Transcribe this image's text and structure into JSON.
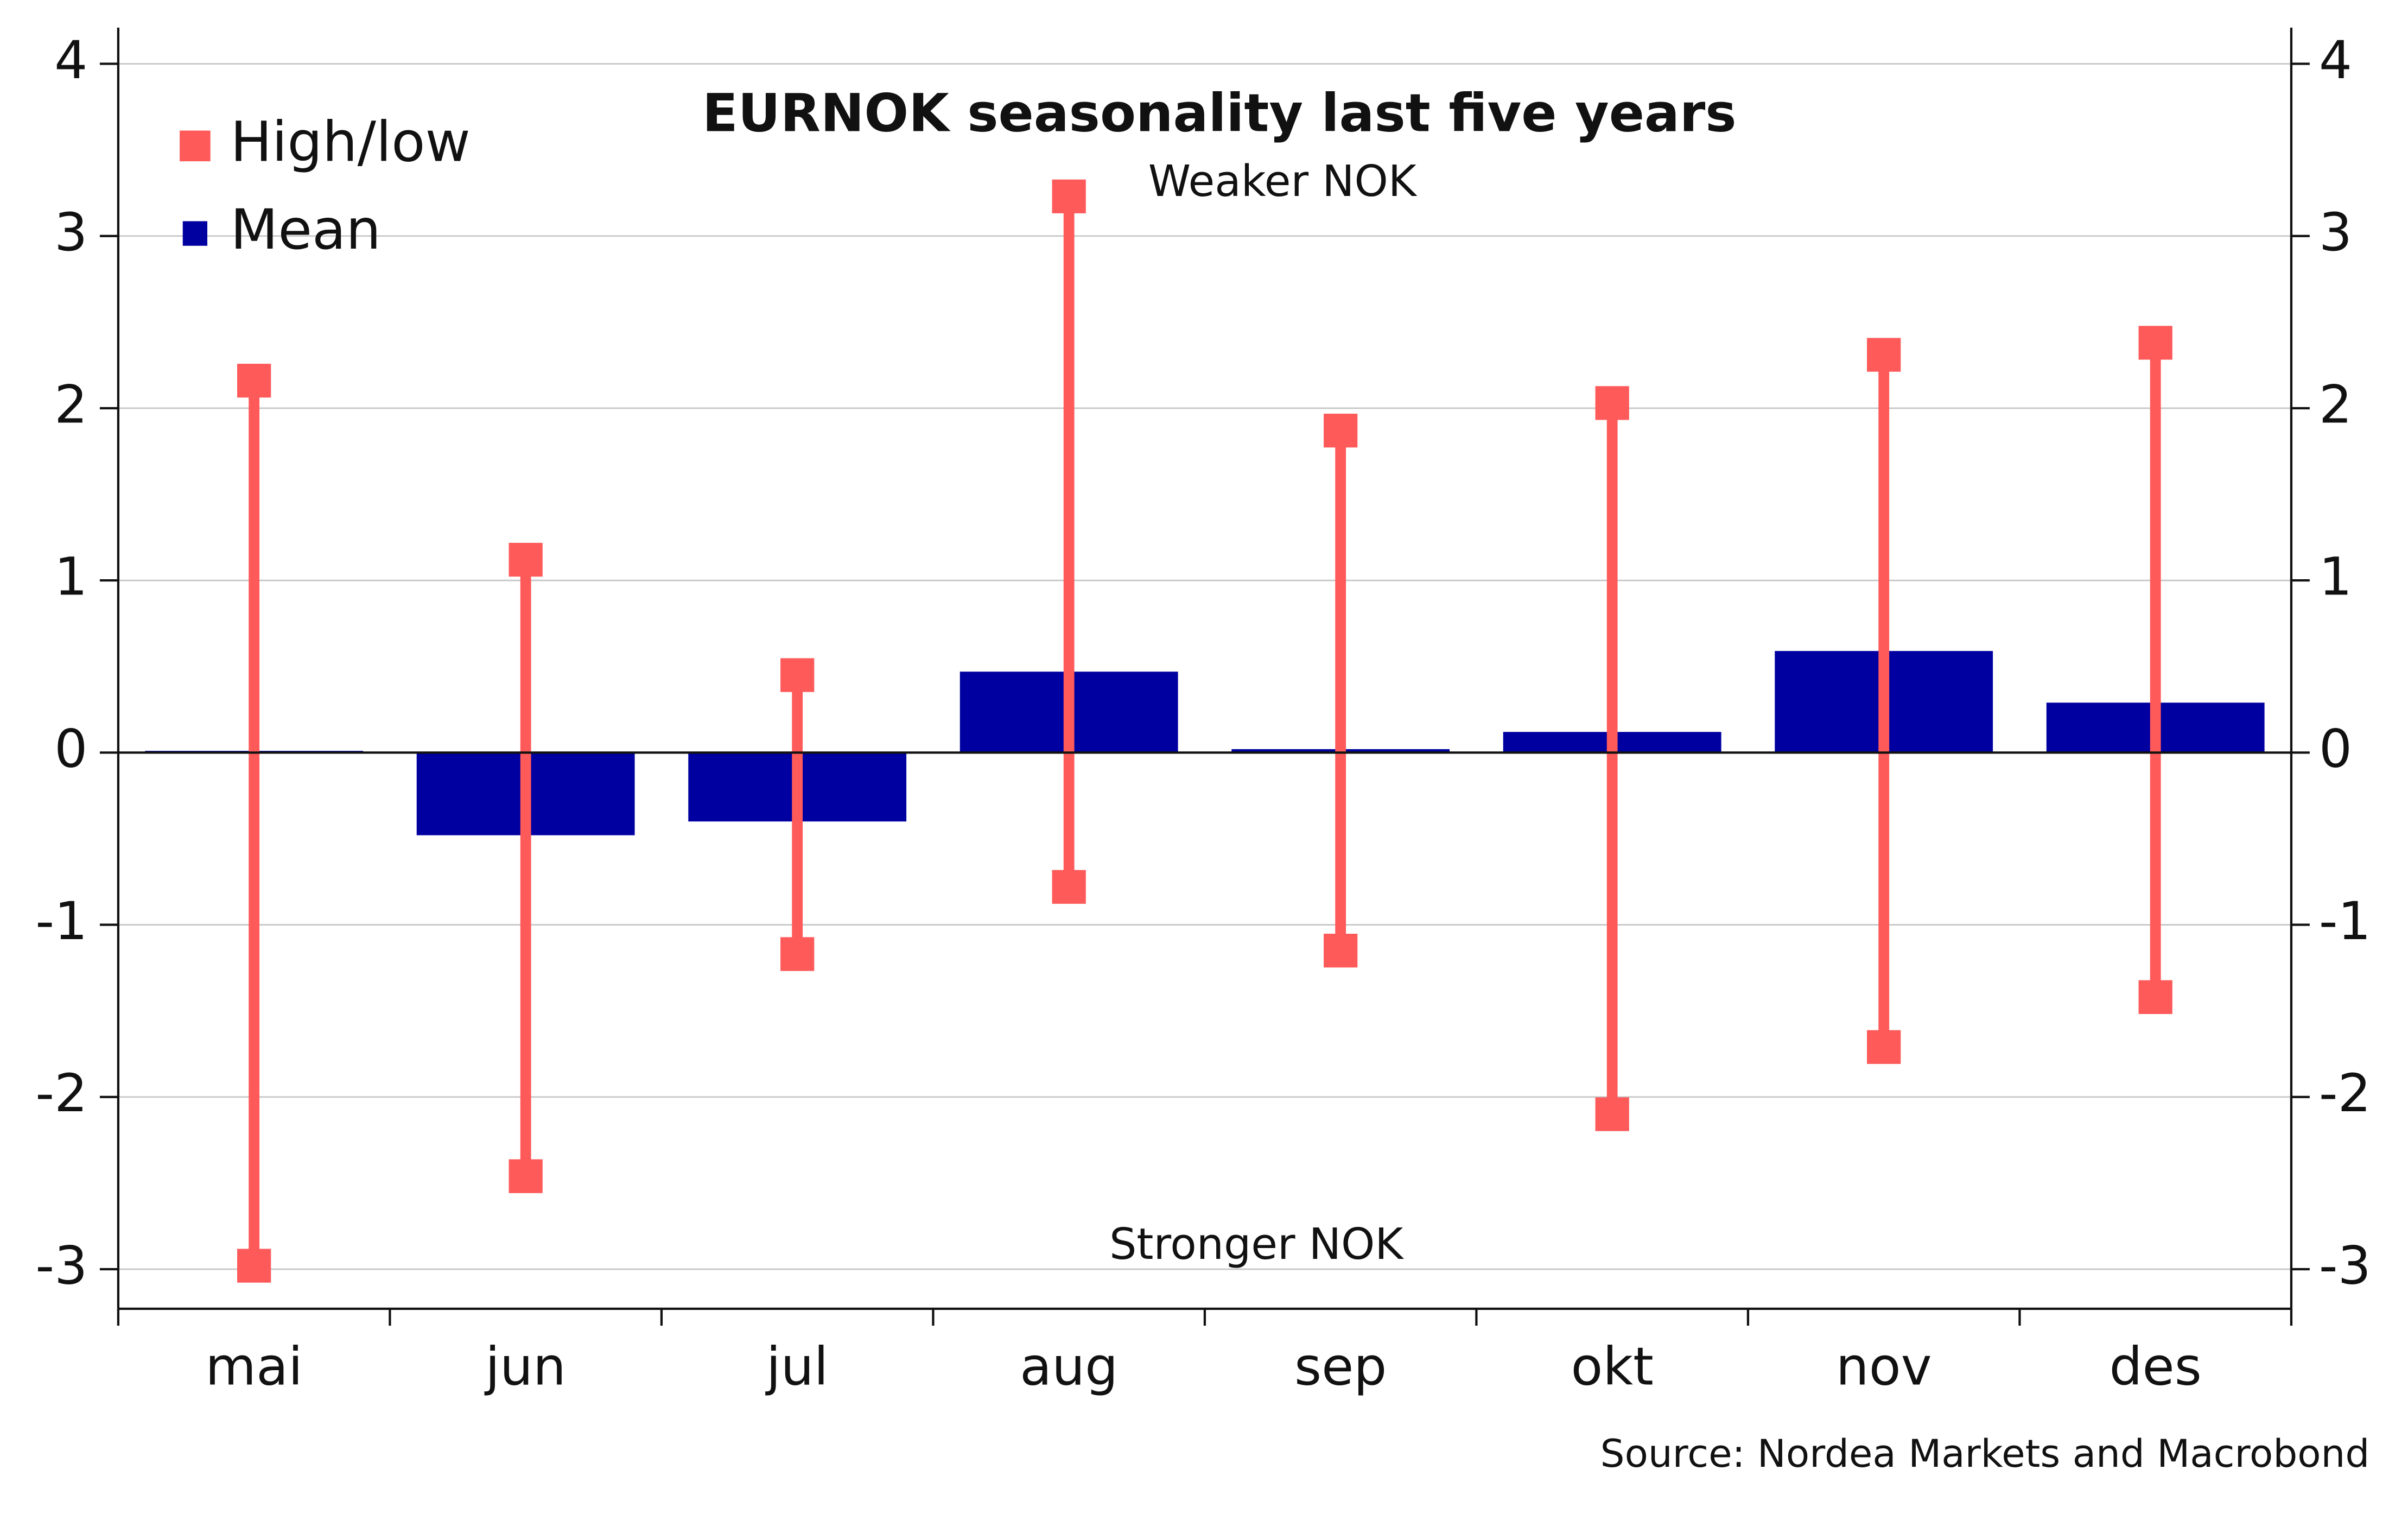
{
  "chart_data": {
    "type": "errorbar-bar",
    "title": "EURNOK seasonality last five years",
    "annotations": [
      "Weaker NOK",
      "Stronger NOK"
    ],
    "source": "Source: Nordea Markets and Macrobond",
    "categories": [
      "mai",
      "jun",
      "jul",
      "aug",
      "sep",
      "okt",
      "nov",
      "des"
    ],
    "series": [
      {
        "name": "High/low",
        "color": "#ff5a5a",
        "high": [
          2.16,
          1.12,
          0.45,
          3.23,
          1.87,
          2.03,
          2.31,
          2.38
        ],
        "low": [
          -2.98,
          -2.46,
          -1.17,
          -0.78,
          -1.15,
          -2.1,
          -1.71,
          -1.42
        ]
      },
      {
        "name": "Mean",
        "color": "#0000a0",
        "values": [
          0.01,
          -0.48,
          -0.4,
          0.47,
          0.02,
          0.12,
          0.59,
          0.29
        ]
      }
    ],
    "ylim": [
      -3.23,
      4.21
    ],
    "yticks": [
      -3,
      -2,
      -1,
      0,
      1,
      2,
      3,
      4
    ],
    "grid": true,
    "legend": "top-left"
  }
}
